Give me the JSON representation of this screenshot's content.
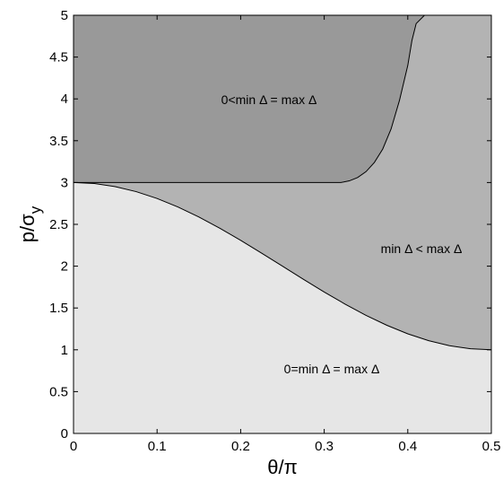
{
  "chart_data": {
    "type": "area",
    "xlabel": "θ/π",
    "ylabel": "p/σ",
    "ylabel_subscript": "y",
    "xlim": [
      0,
      0.5
    ],
    "ylim": [
      0,
      5
    ],
    "x_ticks": [
      "0",
      "0.1",
      "0.2",
      "0.3",
      "0.4",
      "0.5"
    ],
    "y_ticks": [
      "0",
      "0.5",
      "1",
      "1.5",
      "2",
      "2.5",
      "3",
      "3.5",
      "4",
      "4.5",
      "5"
    ],
    "grid": false,
    "regions": [
      {
        "label": "0<min Δ = max Δ",
        "color": "#999999"
      },
      {
        "label": "min Δ < max Δ",
        "color": "#b3b3b3"
      },
      {
        "label": "0=min Δ = max Δ",
        "color": "#e6e6e6"
      }
    ],
    "boundary_lower": {
      "x": [
        0,
        0.025,
        0.05,
        0.075,
        0.1,
        0.125,
        0.15,
        0.175,
        0.2,
        0.225,
        0.25,
        0.275,
        0.3,
        0.325,
        0.35,
        0.375,
        0.4,
        0.425,
        0.45,
        0.475,
        0.5
      ],
      "y": [
        3.0,
        2.988,
        2.951,
        2.891,
        2.809,
        2.707,
        2.588,
        2.454,
        2.309,
        2.156,
        2.0,
        1.844,
        1.691,
        1.546,
        1.412,
        1.293,
        1.191,
        1.109,
        1.049,
        1.012,
        1.0
      ]
    },
    "boundary_upper": {
      "x": [
        0,
        0.3,
        0.32,
        0.33,
        0.34,
        0.35,
        0.36,
        0.37,
        0.38,
        0.39,
        0.4,
        0.405,
        0.41,
        0.42,
        0.5
      ],
      "y": [
        3.0,
        3.0,
        3.0,
        3.02,
        3.06,
        3.13,
        3.24,
        3.4,
        3.64,
        3.98,
        4.4,
        4.7,
        4.9,
        5.0,
        5.0
      ]
    }
  }
}
